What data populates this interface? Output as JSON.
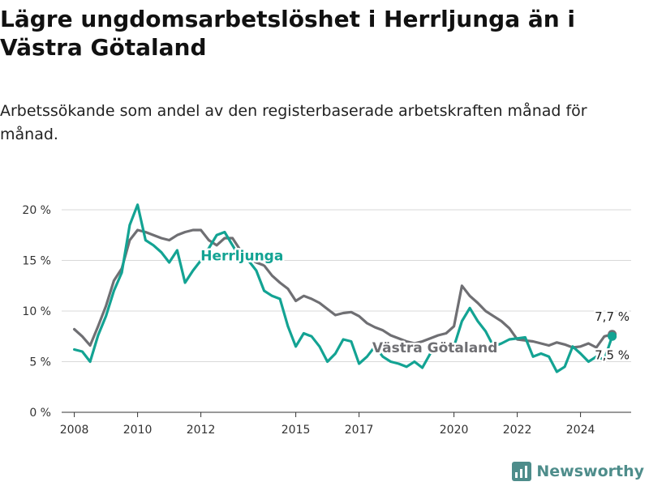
{
  "title": "Lägre ungdomsarbetslöshet i Herrljunga än i Västra Götaland",
  "subtitle": "Arbetssökande som andel av den registerbaserade arbetskraften månad för månad.",
  "brand": "Newsworthy",
  "colors": {
    "herrljunga": "#13a393",
    "vastra": "#6f6f73",
    "grid": "#d9d9d9",
    "axis": "#333333",
    "brand": "#4e8d8b"
  },
  "chart_data": {
    "type": "line",
    "ylim": [
      0,
      20
    ],
    "xlim": [
      2007.6,
      2025.6
    ],
    "y_ticks": [
      {
        "value": 0,
        "label": "0 %"
      },
      {
        "value": 5,
        "label": "5 %"
      },
      {
        "value": 10,
        "label": "10 %"
      },
      {
        "value": 15,
        "label": "15 %"
      },
      {
        "value": 20,
        "label": "20 %"
      }
    ],
    "x_ticks": [
      {
        "value": 2008,
        "label": "2008"
      },
      {
        "value": 2010,
        "label": "2010"
      },
      {
        "value": 2012,
        "label": "2012"
      },
      {
        "value": 2015,
        "label": "2015"
      },
      {
        "value": 2017,
        "label": "2017"
      },
      {
        "value": 2020,
        "label": "2020"
      },
      {
        "value": 2022,
        "label": "2022"
      },
      {
        "value": 2024,
        "label": "2024"
      }
    ],
    "grid": true,
    "series": [
      {
        "name": "Västra Götaland",
        "x": [
          2008.0,
          2008.25,
          2008.5,
          2008.75,
          2009.0,
          2009.25,
          2009.5,
          2009.75,
          2010.0,
          2010.25,
          2010.5,
          2010.75,
          2011.0,
          2011.25,
          2011.5,
          2011.75,
          2012.0,
          2012.25,
          2012.5,
          2012.75,
          2013.0,
          2013.25,
          2013.5,
          2013.75,
          2014.0,
          2014.25,
          2014.5,
          2014.75,
          2015.0,
          2015.25,
          2015.5,
          2015.75,
          2016.0,
          2016.25,
          2016.5,
          2016.75,
          2017.0,
          2017.25,
          2017.5,
          2017.75,
          2018.0,
          2018.25,
          2018.5,
          2018.75,
          2019.0,
          2019.25,
          2019.5,
          2019.75,
          2020.0,
          2020.25,
          2020.5,
          2020.75,
          2021.0,
          2021.25,
          2021.5,
          2021.75,
          2022.0,
          2022.25,
          2022.5,
          2022.75,
          2023.0,
          2023.25,
          2023.5,
          2023.75,
          2024.0,
          2024.25,
          2024.5,
          2024.75,
          2025.0
        ],
        "values": [
          8.2,
          7.5,
          6.6,
          8.5,
          10.5,
          13.0,
          14.2,
          17.0,
          18.0,
          17.8,
          17.5,
          17.2,
          17.0,
          17.5,
          17.8,
          18.0,
          18.0,
          17.0,
          16.5,
          17.2,
          17.2,
          16.0,
          15.2,
          14.8,
          14.5,
          13.5,
          12.8,
          12.2,
          11.0,
          11.5,
          11.2,
          10.8,
          10.2,
          9.6,
          9.8,
          9.9,
          9.5,
          8.8,
          8.4,
          8.1,
          7.6,
          7.3,
          7.0,
          6.8,
          7.0,
          7.3,
          7.6,
          7.8,
          8.5,
          12.5,
          11.5,
          10.8,
          10.0,
          9.5,
          9.0,
          8.3,
          7.2,
          7.1,
          7.0,
          6.8,
          6.6,
          6.9,
          6.7,
          6.4,
          6.5,
          6.8,
          6.4,
          7.5,
          7.7
        ]
      },
      {
        "name": "Herrljunga",
        "x": [
          2008.0,
          2008.25,
          2008.5,
          2008.75,
          2009.0,
          2009.25,
          2009.5,
          2009.75,
          2010.0,
          2010.25,
          2010.5,
          2010.75,
          2011.0,
          2011.25,
          2011.5,
          2011.75,
          2012.0,
          2012.25,
          2012.5,
          2012.75,
          2013.0,
          2013.25,
          2013.5,
          2013.75,
          2014.0,
          2014.25,
          2014.5,
          2014.75,
          2015.0,
          2015.25,
          2015.5,
          2015.75,
          2016.0,
          2016.25,
          2016.5,
          2016.75,
          2017.0,
          2017.25,
          2017.5,
          2017.75,
          2018.0,
          2018.25,
          2018.5,
          2018.75,
          2019.0,
          2019.25,
          2019.5,
          2019.75,
          2020.0,
          2020.25,
          2020.5,
          2020.75,
          2021.0,
          2021.25,
          2021.5,
          2021.75,
          2022.0,
          2022.25,
          2022.5,
          2022.75,
          2023.0,
          2023.25,
          2023.5,
          2023.75,
          2024.0,
          2024.25,
          2024.5,
          2024.75,
          2025.0
        ],
        "values": [
          6.2,
          6.0,
          5.0,
          7.6,
          9.5,
          12.0,
          13.8,
          18.5,
          20.5,
          17.0,
          16.5,
          15.8,
          14.8,
          16.0,
          12.8,
          14.0,
          15.0,
          16.2,
          17.5,
          17.8,
          16.5,
          15.2,
          15.0,
          14.0,
          12.0,
          11.5,
          11.2,
          8.5,
          6.5,
          7.8,
          7.5,
          6.5,
          5.0,
          5.8,
          7.2,
          7.0,
          4.8,
          5.5,
          6.5,
          5.5,
          5.0,
          4.8,
          4.5,
          5.0,
          4.4,
          5.8,
          6.2,
          6.0,
          6.5,
          9.0,
          10.3,
          9.0,
          8.0,
          6.5,
          6.8,
          7.2,
          7.3,
          7.4,
          5.5,
          5.8,
          5.5,
          4.0,
          4.5,
          6.5,
          5.8,
          5.0,
          5.5,
          5.2,
          7.5
        ]
      }
    ],
    "annotations": [
      {
        "text": "Herrljunga",
        "x": 2013.3,
        "y": 15.5,
        "series": "Herrljunga"
      },
      {
        "text": "Västra Götaland",
        "x": 2019.4,
        "y": 6.4,
        "series": "Västra Götaland"
      }
    ],
    "end_labels": [
      {
        "text": "7,7 %",
        "series": "Västra Götaland",
        "value": 7.7
      },
      {
        "text": "7,5 %",
        "series": "Herrljunga",
        "value": 7.5
      }
    ]
  }
}
